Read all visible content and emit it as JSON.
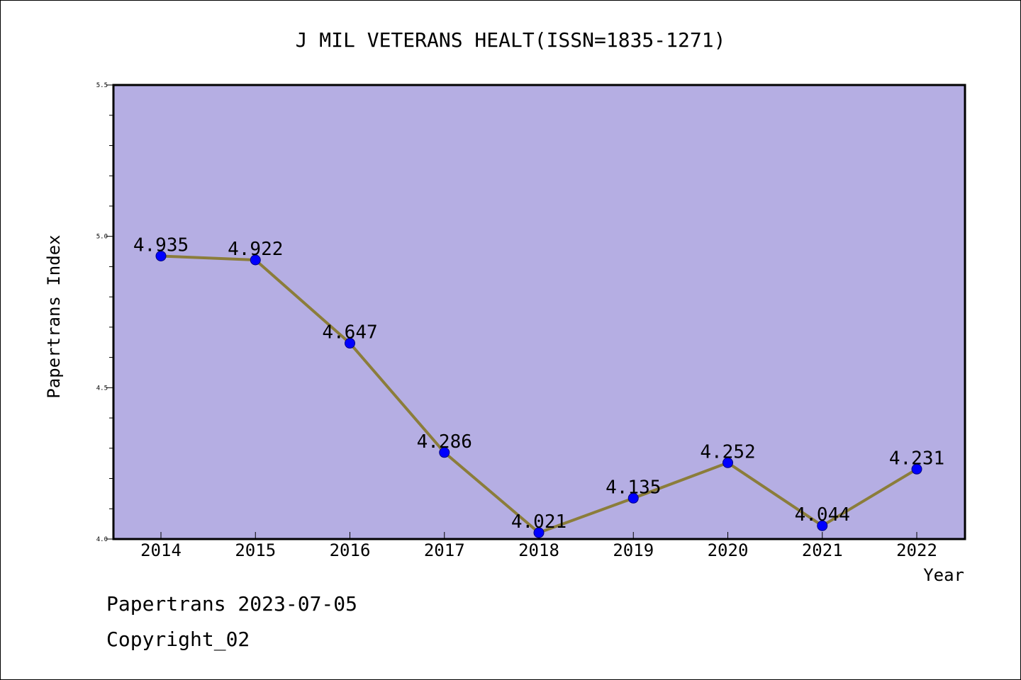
{
  "chart_data": {
    "type": "line",
    "title": "J MIL VETERANS HEALT(ISSN=1835-1271)",
    "xlabel": "Year",
    "ylabel": "Papertrans Index",
    "categories": [
      "2014",
      "2015",
      "2016",
      "2017",
      "2018",
      "2019",
      "2020",
      "2021",
      "2022"
    ],
    "series": [
      {
        "values": [
          4.935,
          4.922,
          4.647,
          4.286,
          4.021,
          4.135,
          4.252,
          4.044,
          4.231
        ],
        "labels": [
          "4.935",
          "4.922",
          "4.647",
          "4.286",
          "4.021",
          "4.135",
          "4.252",
          "4.044",
          "4.231"
        ]
      }
    ],
    "ylim": [
      4.0,
      5.5
    ],
    "yticks": [
      "4.0",
      "4.5",
      "5.0",
      "5.5"
    ],
    "grid": false,
    "legend": "none",
    "colors": {
      "plot_background": "#b5aee3",
      "line": "#8b7d3a",
      "marker": "#0000ff"
    }
  },
  "footer": {
    "source": "Papertrans 2023-07-05",
    "copyright": "Copyright_02"
  }
}
